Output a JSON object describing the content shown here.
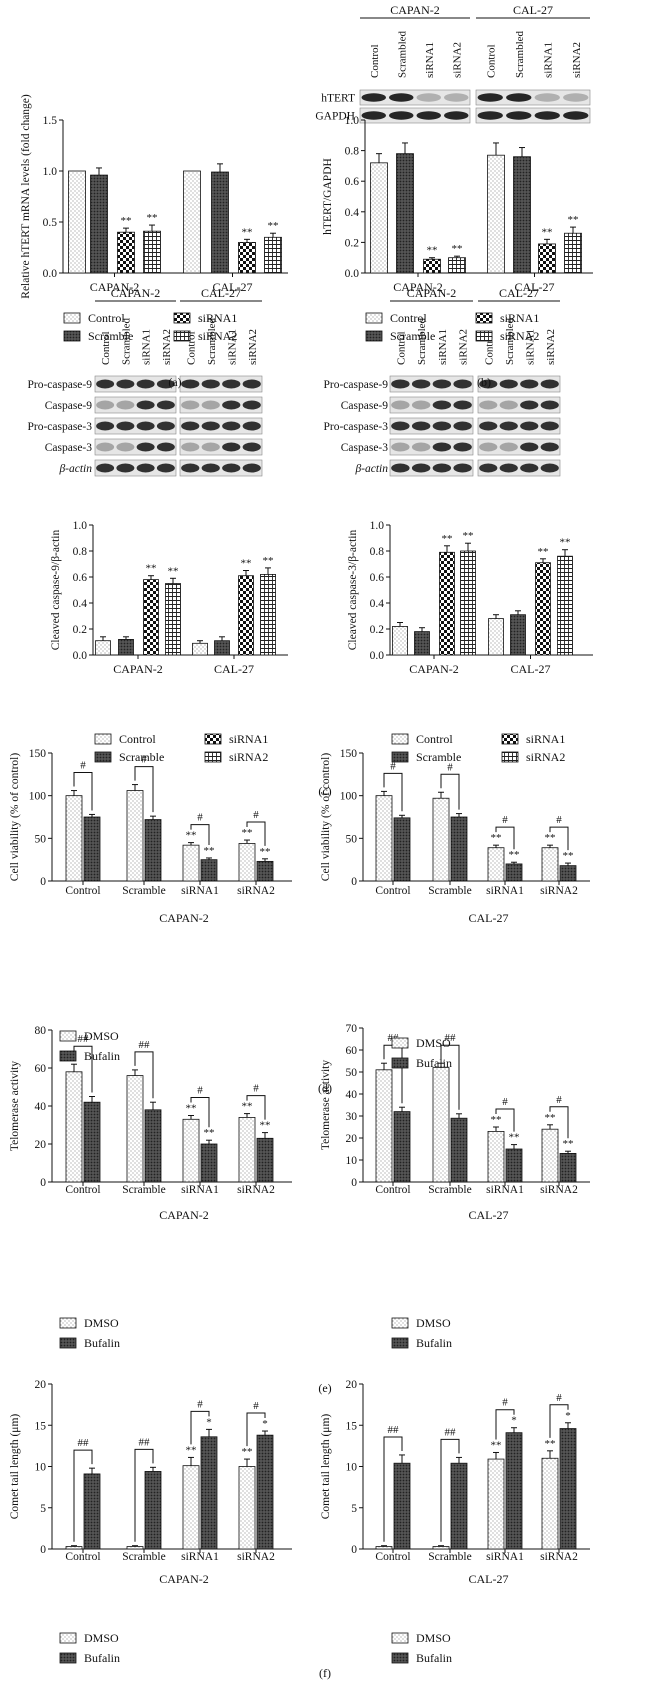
{
  "panel_labels": [
    "(a)",
    "(b)",
    "(c)",
    "(d)",
    "(e)",
    "(f)"
  ],
  "significance": {
    "double": "**",
    "single": "*",
    "hash": "#",
    "double_hash": "##"
  },
  "blots": {
    "b": {
      "groups": [
        "CAPAN-2",
        "CAL-27"
      ],
      "lanes": [
        "Control",
        "Scrambled",
        "siRNA1",
        "siRNA2"
      ],
      "rows": [
        "hTERT",
        "GAPDH"
      ]
    },
    "c": {
      "groups": [
        "CAPAN-2",
        "CAL-27"
      ],
      "lanes": [
        "Control",
        "Scrambled",
        "siRNA1",
        "siRNA2"
      ],
      "rows": [
        "Pro-caspase-9",
        "Caspase-9",
        "Pro-caspase-3",
        "Caspase-3",
        "β-actin"
      ]
    }
  },
  "legends": {
    "abc": [
      "Control",
      "Scramble",
      "siRNA1",
      "siRNA2"
    ],
    "def": [
      "DMSO",
      "Bufalin"
    ]
  },
  "chart_data": [
    {
      "id": "a",
      "type": "bar",
      "ylabel": "Relative hTERT mRNA levels (fold change)",
      "ylim": [
        0,
        1.5
      ],
      "yticks": [
        "0.0",
        "0.5",
        "1.0",
        "1.5"
      ],
      "categories": [
        "CAPAN-2",
        "CAL-27"
      ],
      "series": [
        {
          "name": "Control",
          "values": [
            1.0,
            1.0
          ],
          "err": [
            0,
            0
          ],
          "sig": [
            "",
            ""
          ]
        },
        {
          "name": "Scramble",
          "values": [
            0.96,
            0.99
          ],
          "err": [
            0.07,
            0.08
          ],
          "sig": [
            "",
            ""
          ]
        },
        {
          "name": "siRNA1",
          "values": [
            0.4,
            0.3
          ],
          "err": [
            0.04,
            0.03
          ],
          "sig": [
            "**",
            "**"
          ]
        },
        {
          "name": "siRNA2",
          "values": [
            0.41,
            0.35
          ],
          "err": [
            0.06,
            0.04
          ],
          "sig": [
            "**",
            "**"
          ]
        }
      ]
    },
    {
      "id": "b",
      "type": "bar",
      "ylabel": "hTERT/GAPDH",
      "ylim": [
        0,
        1.0
      ],
      "yticks": [
        "0.0",
        "0.2",
        "0.4",
        "0.6",
        "0.8",
        "1.0"
      ],
      "categories": [
        "CAPAN-2",
        "CAL-27"
      ],
      "series": [
        {
          "name": "Control",
          "values": [
            0.72,
            0.77
          ],
          "err": [
            0.06,
            0.08
          ],
          "sig": [
            "",
            ""
          ]
        },
        {
          "name": "Scramble",
          "values": [
            0.78,
            0.76
          ],
          "err": [
            0.07,
            0.06
          ],
          "sig": [
            "",
            ""
          ]
        },
        {
          "name": "siRNA1",
          "values": [
            0.09,
            0.19
          ],
          "err": [
            0.01,
            0.03
          ],
          "sig": [
            "**",
            "**"
          ]
        },
        {
          "name": "siRNA2",
          "values": [
            0.1,
            0.26
          ],
          "err": [
            0.01,
            0.04
          ],
          "sig": [
            "**",
            "**"
          ]
        }
      ]
    },
    {
      "id": "c1",
      "type": "bar",
      "ylabel": "Cleaved caspase-9/β-actin",
      "ylim": [
        0,
        1.0
      ],
      "yticks": [
        "0.0",
        "0.2",
        "0.4",
        "0.6",
        "0.8",
        "1.0"
      ],
      "categories": [
        "CAPAN-2",
        "CAL-27"
      ],
      "series": [
        {
          "name": "Control",
          "values": [
            0.11,
            0.09
          ],
          "err": [
            0.03,
            0.02
          ],
          "sig": [
            "",
            ""
          ]
        },
        {
          "name": "Scramble",
          "values": [
            0.12,
            0.11
          ],
          "err": [
            0.02,
            0.03
          ],
          "sig": [
            "",
            ""
          ]
        },
        {
          "name": "siRNA1",
          "values": [
            0.58,
            0.61
          ],
          "err": [
            0.03,
            0.04
          ],
          "sig": [
            "**",
            "**"
          ]
        },
        {
          "name": "siRNA2",
          "values": [
            0.55,
            0.62
          ],
          "err": [
            0.04,
            0.05
          ],
          "sig": [
            "**",
            "**"
          ]
        }
      ]
    },
    {
      "id": "c2",
      "type": "bar",
      "ylabel": "Cleaved caspase-3/β-actin",
      "ylim": [
        0,
        1.0
      ],
      "yticks": [
        "0.0",
        "0.2",
        "0.4",
        "0.6",
        "0.8",
        "1.0"
      ],
      "categories": [
        "CAPAN-2",
        "CAL-27"
      ],
      "series": [
        {
          "name": "Control",
          "values": [
            0.22,
            0.28
          ],
          "err": [
            0.03,
            0.03
          ],
          "sig": [
            "",
            ""
          ]
        },
        {
          "name": "Scramble",
          "values": [
            0.18,
            0.31
          ],
          "err": [
            0.03,
            0.03
          ],
          "sig": [
            "",
            ""
          ]
        },
        {
          "name": "siRNA1",
          "values": [
            0.79,
            0.71
          ],
          "err": [
            0.05,
            0.03
          ],
          "sig": [
            "**",
            "**"
          ]
        },
        {
          "name": "siRNA2",
          "values": [
            0.8,
            0.76
          ],
          "err": [
            0.06,
            0.05
          ],
          "sig": [
            "**",
            "**"
          ]
        }
      ]
    },
    {
      "id": "d1",
      "type": "bar",
      "ylabel": "Cell viability (% of control)",
      "xlabel": "CAPAN-2",
      "ylim": [
        0,
        150
      ],
      "yticks": [
        "0",
        "50",
        "100",
        "150"
      ],
      "categories": [
        "Control",
        "Scramble",
        "siRNA1",
        "siRNA2"
      ],
      "series": [
        {
          "name": "DMSO",
          "values": [
            100,
            106,
            42,
            44
          ],
          "err": [
            6,
            7,
            3,
            4
          ],
          "sig": [
            "",
            "",
            "**",
            "**"
          ]
        },
        {
          "name": "Bufalin",
          "values": [
            75,
            72,
            25,
            23
          ],
          "err": [
            3,
            4,
            2,
            3
          ],
          "sig": [
            "",
            "",
            "**",
            "**"
          ]
        }
      ],
      "brackets": [
        "#",
        "#",
        "#",
        "#"
      ]
    },
    {
      "id": "d2",
      "type": "bar",
      "ylabel": "Cell viability (% of control)",
      "xlabel": "CAL-27",
      "ylim": [
        0,
        150
      ],
      "yticks": [
        "0",
        "50",
        "100",
        "150"
      ],
      "categories": [
        "Control",
        "Scramble",
        "siRNA1",
        "siRNA2"
      ],
      "series": [
        {
          "name": "DMSO",
          "values": [
            100,
            97,
            39,
            39
          ],
          "err": [
            5,
            7,
            3,
            3
          ],
          "sig": [
            "",
            "",
            "**",
            "**"
          ]
        },
        {
          "name": "Bufalin",
          "values": [
            74,
            75,
            20,
            18
          ],
          "err": [
            3,
            4,
            2,
            3
          ],
          "sig": [
            "",
            "",
            "**",
            "**"
          ]
        }
      ],
      "brackets": [
        "#",
        "#",
        "#",
        "#"
      ]
    },
    {
      "id": "e1",
      "type": "bar",
      "ylabel": "Telomerase activity",
      "xlabel": "CAPAN-2",
      "ylim": [
        0,
        80
      ],
      "yticks": [
        "0",
        "20",
        "40",
        "60",
        "80"
      ],
      "categories": [
        "Control",
        "Scramble",
        "siRNA1",
        "siRNA2"
      ],
      "series": [
        {
          "name": "DMSO",
          "values": [
            58,
            56,
            33,
            34
          ],
          "err": [
            4,
            3,
            2,
            2
          ],
          "sig": [
            "",
            "",
            "**",
            "**"
          ]
        },
        {
          "name": "Bufalin",
          "values": [
            42,
            38,
            20,
            23
          ],
          "err": [
            3,
            4,
            2,
            3
          ],
          "sig": [
            "",
            "",
            "**",
            "**"
          ]
        }
      ],
      "brackets": [
        "##",
        "##",
        "#",
        "#"
      ]
    },
    {
      "id": "e2",
      "type": "bar",
      "ylabel": "Telomerase activity",
      "xlabel": "CAL-27",
      "ylim": [
        0,
        70
      ],
      "yticks": [
        "0",
        "10",
        "20",
        "30",
        "40",
        "50",
        "60",
        "70"
      ],
      "categories": [
        "Control",
        "Scramble",
        "siRNA1",
        "siRNA2"
      ],
      "series": [
        {
          "name": "DMSO",
          "values": [
            51,
            52,
            23,
            24
          ],
          "err": [
            3,
            2,
            2,
            2
          ],
          "sig": [
            "",
            "",
            "**",
            "**"
          ]
        },
        {
          "name": "Bufalin",
          "values": [
            32,
            29,
            15,
            13
          ],
          "err": [
            2,
            2,
            2,
            1
          ],
          "sig": [
            "",
            "",
            "**",
            "**"
          ]
        }
      ],
      "brackets": [
        "##",
        "##",
        "#",
        "#"
      ]
    },
    {
      "id": "f1",
      "type": "bar",
      "ylabel": "Comet tail length (μm)",
      "xlabel": "CAPAN-2",
      "ylim": [
        0,
        20
      ],
      "yticks": [
        "0",
        "5",
        "10",
        "15",
        "20"
      ],
      "categories": [
        "Control",
        "Scramble",
        "siRNA1",
        "siRNA2"
      ],
      "series": [
        {
          "name": "DMSO",
          "values": [
            0.3,
            0.3,
            10.1,
            10.0
          ],
          "err": [
            0.1,
            0.1,
            1.0,
            0.9
          ],
          "sig": [
            "",
            "",
            "**",
            "**"
          ]
        },
        {
          "name": "Bufalin",
          "values": [
            9.1,
            9.4,
            13.6,
            13.8
          ],
          "err": [
            0.7,
            0.5,
            0.9,
            0.5
          ],
          "sig": [
            "",
            "",
            "*",
            "*"
          ]
        }
      ],
      "brackets": [
        "##",
        "##",
        "#",
        "#"
      ]
    },
    {
      "id": "f2",
      "type": "bar",
      "ylabel": "Comet tail length (μm)",
      "xlabel": "CAL-27",
      "ylim": [
        0,
        20
      ],
      "yticks": [
        "0",
        "5",
        "10",
        "15",
        "20"
      ],
      "categories": [
        "Control",
        "Scramble",
        "siRNA1",
        "siRNA2"
      ],
      "series": [
        {
          "name": "DMSO",
          "values": [
            0.3,
            0.3,
            10.9,
            11.0
          ],
          "err": [
            0.1,
            0.1,
            0.8,
            0.9
          ],
          "sig": [
            "",
            "",
            "**",
            "**"
          ]
        },
        {
          "name": "Bufalin",
          "values": [
            10.4,
            10.4,
            14.1,
            14.6
          ],
          "err": [
            1.0,
            0.7,
            0.6,
            0.7
          ],
          "sig": [
            "",
            "",
            "*",
            "*"
          ]
        }
      ],
      "brackets": [
        "##",
        "##",
        "#",
        "#"
      ]
    }
  ]
}
